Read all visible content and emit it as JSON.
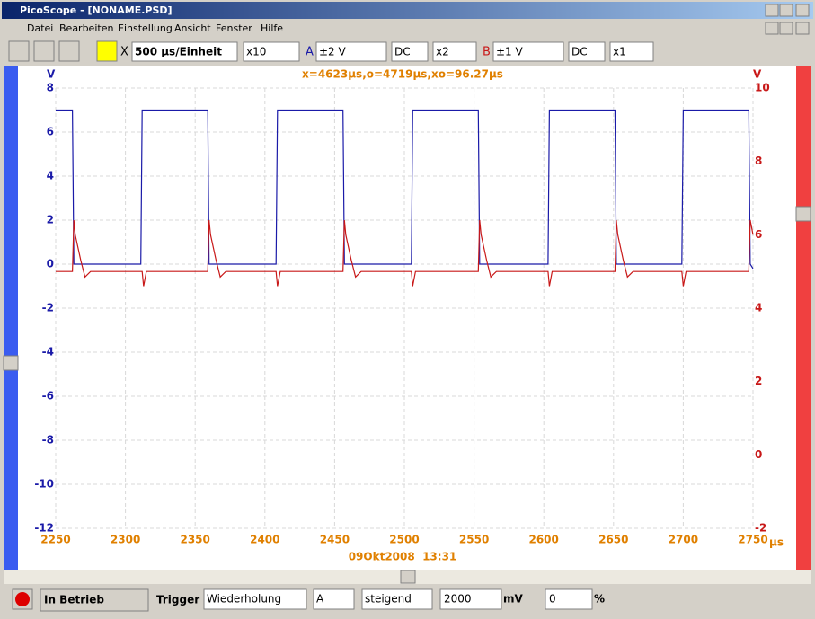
{
  "window": {
    "title": "PicoScope - [NONAME.PSD]",
    "menu": [
      "Datei",
      "Bearbeiten",
      "Einstellung",
      "Ansicht",
      "Fenster",
      "Hilfe"
    ]
  },
  "toolbar": {
    "timebase_x": "X",
    "timebase": "500 µs/Einheit",
    "zoom": "x10",
    "channel_a": "A",
    "range_a": "±2 V",
    "coupling_a": "DC",
    "gain_a": "x2",
    "channel_b": "B",
    "range_b": "±1 V",
    "coupling_b": "DC",
    "gain_b": "x1"
  },
  "status": {
    "state": "In Betrieb",
    "trigger": "Trigger",
    "mode": "Wiederholung",
    "channel": "A",
    "edge": "steigend",
    "level": "2000",
    "level_unit": "mV",
    "delay": "0",
    "delay_unit": "%"
  },
  "chart_data": {
    "type": "line",
    "annotation": "x=4623µs,o=4719µs,xo=96.27µs",
    "date": "09Okt2008  13:31",
    "xlabel": "µs",
    "ylabel": "V",
    "y2label": "V",
    "xlim": [
      2250,
      2750
    ],
    "xticks": [
      2250,
      2300,
      2350,
      2400,
      2450,
      2500,
      2550,
      2600,
      2650,
      2700,
      2750
    ],
    "ylim": [
      -12,
      8
    ],
    "yticks": [
      -12,
      -10,
      -8,
      -6,
      -4,
      -2,
      0,
      2,
      4,
      6,
      8
    ],
    "y2lim": [
      -2,
      10
    ],
    "y2ticks": [
      -2,
      0,
      2,
      4,
      6,
      8,
      10
    ],
    "grid": true,
    "series": [
      {
        "color": "#1a1aa8",
        "x": [
          2250,
          2262,
          2263,
          2311,
          2312,
          2359,
          2360,
          2408,
          2409,
          2456,
          2457,
          2505,
          2506,
          2553,
          2554,
          2603,
          2604,
          2651,
          2652,
          2699,
          2700,
          2747,
          2748,
          2750
        ],
        "values": [
          7,
          7,
          0,
          0,
          7,
          7,
          0,
          0,
          7,
          7,
          0,
          0,
          7,
          7,
          0,
          0,
          7,
          7,
          0,
          0,
          7,
          7,
          0,
          -0.2
        ]
      },
      {
        "color": "#c81818",
        "axis": "y2",
        "x": [
          2250,
          2262,
          2263,
          2264,
          2268,
          2271,
          2275,
          2312,
          2313,
          2315,
          2359,
          2360,
          2361,
          2365,
          2368,
          2372,
          2408,
          2409,
          2411,
          2456,
          2457,
          2458,
          2462,
          2465,
          2469,
          2505,
          2506,
          2508,
          2553,
          2554,
          2555,
          2559,
          2562,
          2566,
          2603,
          2604,
          2606,
          2651,
          2652,
          2653,
          2657,
          2660,
          2664,
          2699,
          2700,
          2702,
          2747,
          2748,
          2750
        ],
        "values": [
          5,
          5,
          6.4,
          6,
          5.3,
          4.85,
          5,
          5,
          4.6,
          5,
          5,
          6.4,
          6,
          5.3,
          4.85,
          5,
          5,
          4.6,
          5,
          5,
          6.4,
          6,
          5.3,
          4.85,
          5,
          5,
          4.6,
          5,
          5,
          6.4,
          6,
          5.3,
          4.85,
          5,
          5,
          4.6,
          5,
          5,
          6.4,
          6,
          5.3,
          4.85,
          5,
          5,
          4.6,
          5,
          5,
          6.4,
          6
        ]
      }
    ]
  }
}
